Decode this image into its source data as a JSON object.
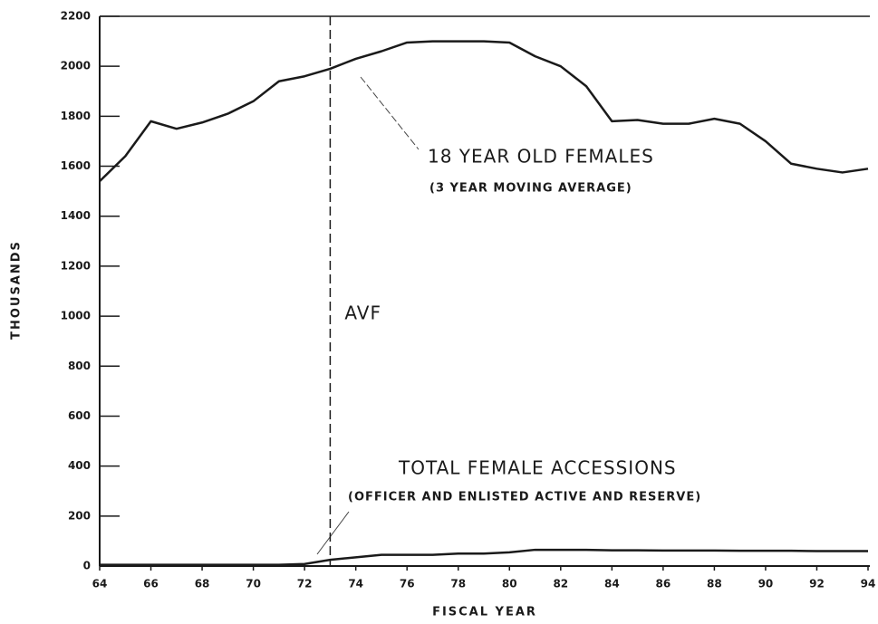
{
  "chart_data": {
    "type": "line",
    "x_label": "FISCAL YEAR",
    "y_label": "THOUSANDS",
    "x": [
      64,
      65,
      66,
      67,
      68,
      69,
      70,
      71,
      72,
      73,
      74,
      75,
      76,
      77,
      78,
      79,
      80,
      81,
      82,
      83,
      84,
      85,
      86,
      87,
      88,
      89,
      90,
      91,
      92,
      93,
      94
    ],
    "series": [
      {
        "name": "18 YEAR OLD FEMALES",
        "subtitle": "(3 YEAR MOVING AVERAGE)",
        "color": "#1a1a1a",
        "values": [
          1540,
          1640,
          1780,
          1750,
          1775,
          1810,
          1860,
          1940,
          1960,
          1990,
          2030,
          2060,
          2095,
          2100,
          2100,
          2100,
          2095,
          2040,
          2000,
          1920,
          1780,
          1785,
          1770,
          1770,
          1790,
          1770,
          1700,
          1610,
          1590,
          1575,
          1590
        ]
      },
      {
        "name": "TOTAL FEMALE ACCESSIONS",
        "subtitle": "(OFFICER AND ENLISTED ACTIVE AND RESERVE)",
        "color": "#1a1a1a",
        "values": [
          5,
          5,
          5,
          5,
          5,
          5,
          5,
          5,
          8,
          25,
          35,
          45,
          45,
          45,
          50,
          50,
          55,
          65,
          65,
          65,
          63,
          63,
          62,
          62,
          62,
          61,
          61,
          61,
          60,
          60,
          60
        ]
      }
    ],
    "reference_line": {
      "x": 73,
      "label": "AVF"
    },
    "xlim": [
      64,
      94
    ],
    "xticks": [
      64,
      66,
      68,
      70,
      72,
      74,
      76,
      78,
      80,
      82,
      84,
      86,
      88,
      90,
      92,
      94
    ],
    "ylim": [
      0,
      2200
    ],
    "yticks": [
      0,
      200,
      400,
      600,
      800,
      1000,
      1200,
      1400,
      1600,
      1800,
      2000,
      2200
    ]
  }
}
